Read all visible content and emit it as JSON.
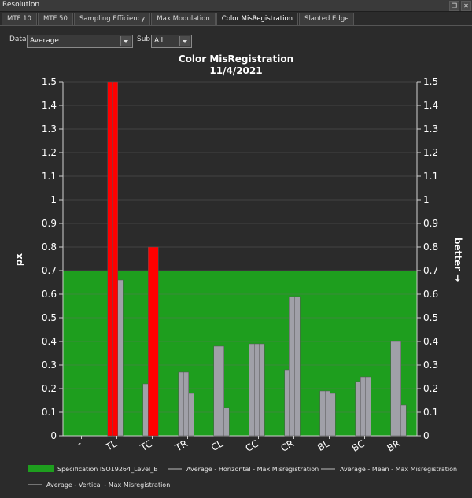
{
  "window": {
    "title": "Resolution"
  },
  "tabs": [
    {
      "label": "MTF 10"
    },
    {
      "label": "MTF 50"
    },
    {
      "label": "Sampling Efficiency"
    },
    {
      "label": "Max Modulation"
    },
    {
      "label": "Color MisRegistration",
      "active": true
    },
    {
      "label": "Slanted Edge"
    }
  ],
  "toolbar": {
    "data_label": "Data",
    "data_value": "Average",
    "sub_label": "Sub",
    "sub_value": "All"
  },
  "colors": {
    "spec_fill": "#1e9e1e",
    "exceed": "#ff0000",
    "normal": "#a0a0a8",
    "background": "#2b2b2b"
  },
  "chart_data": {
    "type": "bar",
    "title": "Color MisRegistration",
    "subtitle": "11/4/2021",
    "ylabel": "px",
    "ylabel_right": "better →",
    "ylim": [
      0,
      1.5
    ],
    "yticks": [
      "0",
      "0.1",
      "0.2",
      "0.3",
      "0.4",
      "0.5",
      "0.6",
      "0.7",
      "0.8",
      "0.9",
      "1",
      "1.1",
      "1.2",
      "1.3",
      "1.4",
      "1.5"
    ],
    "categories": [
      "-",
      "TL",
      "TC",
      "TR",
      "CL",
      "CC",
      "CR",
      "BL",
      "BC",
      "BR"
    ],
    "spec_limit": 0.7,
    "grid": true,
    "legend_position": "bottom",
    "series": [
      {
        "name": "Average - Horizontal - Max Misregistration",
        "values": [
          0,
          1.5,
          0.22,
          0.27,
          0.38,
          0.39,
          0.28,
          0.19,
          0.23,
          0.4
        ]
      },
      {
        "name": "Average - Mean - Max Misregistration",
        "values": [
          0,
          1.5,
          0.8,
          0.27,
          0.38,
          0.39,
          0.59,
          0.19,
          0.25,
          0.4
        ]
      },
      {
        "name": "Average - Vertical - Max Misregistration",
        "values": [
          0,
          0.66,
          0.8,
          0.18,
          0.12,
          0.39,
          0.59,
          0.18,
          0.25,
          0.13
        ]
      }
    ],
    "legend": [
      {
        "label": "Specification ISO19264_Level_B",
        "kind": "swatch"
      },
      {
        "label": "Average - Horizontal - Max Misregistration",
        "kind": "line"
      },
      {
        "label": "Average - Mean - Max Misregistration",
        "kind": "line"
      },
      {
        "label": "Average - Vertical - Max Misregistration",
        "kind": "line"
      }
    ]
  }
}
